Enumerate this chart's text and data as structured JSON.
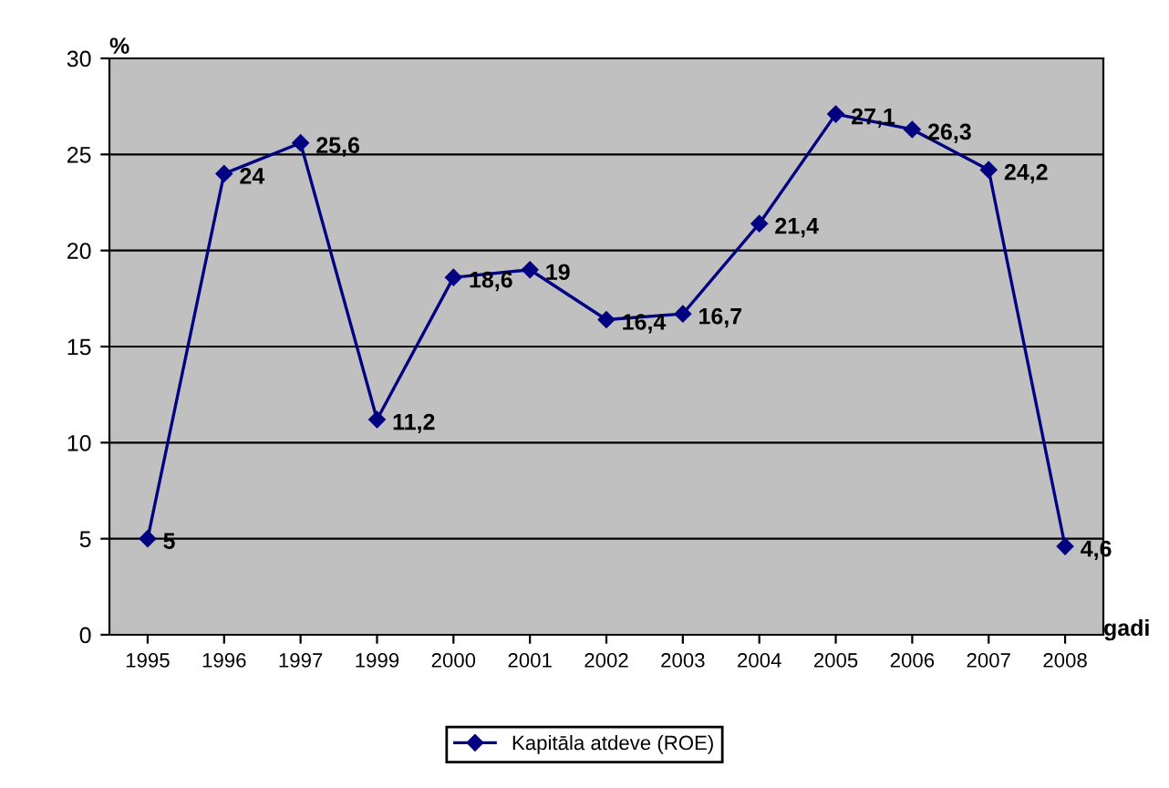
{
  "chart_data": {
    "type": "line",
    "ylabel": "%",
    "xlabel": "gadi",
    "categories": [
      "1995",
      "1996",
      "1997",
      "1999",
      "2000",
      "2001",
      "2002",
      "2003",
      "2004",
      "2005",
      "2006",
      "2007",
      "2008"
    ],
    "series": [
      {
        "name": "Kapitāla atdeve (ROE)",
        "color": "#000080",
        "values": [
          5,
          24,
          25.6,
          11.2,
          18.6,
          19,
          16.4,
          16.7,
          21.4,
          27.1,
          26.3,
          24.2,
          4.6
        ],
        "value_labels": [
          "5",
          "24",
          "25,6",
          "11,2",
          "18,6",
          "19",
          "16,4",
          "16,7",
          "21,4",
          "27,1",
          "26,3",
          "24,2",
          "4,6"
        ]
      }
    ],
    "ylim": [
      0,
      30
    ],
    "yticks": [
      0,
      5,
      10,
      15,
      20,
      25,
      30
    ],
    "grid": "y",
    "legend": "bottom",
    "marker": "diamond",
    "line_style": "solid"
  }
}
